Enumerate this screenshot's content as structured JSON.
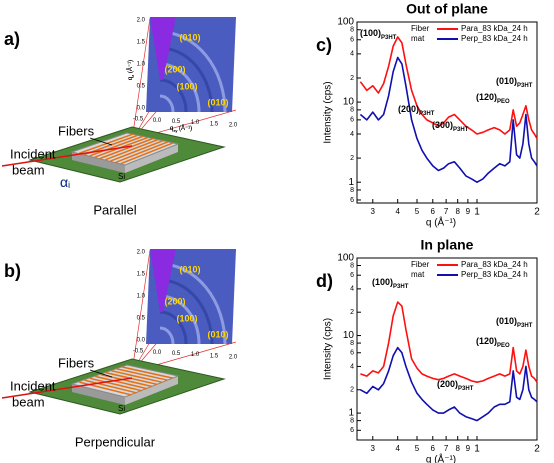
{
  "diagrams": [
    {
      "label": "a)",
      "fibers": "Fibers",
      "beam": [
        "Incident",
        "beam"
      ],
      "alpha": {
        "symbol": "α",
        "sub": "i"
      },
      "substrate": "Si",
      "caption": "Parallel",
      "detector": {
        "reflections": [
          "(010)",
          "(200)",
          "(100)",
          "(010)"
        ],
        "z_ticks": [
          "2.0",
          "1.5",
          "1.0",
          "0.5",
          "0.0"
        ],
        "xy_ticks": [
          "-0.5",
          "0.0",
          "0.5",
          "1.0",
          "1.5",
          "2.0"
        ],
        "z_label": {
          "symbol": "q",
          "sub": "z",
          "unit": " (Å⁻¹)"
        },
        "xy_label": {
          "symbol": "q",
          "sub": "xy",
          "unit": " (Å⁻¹)"
        }
      }
    },
    {
      "label": "b)",
      "fibers": "Fibers",
      "beam": [
        "Incident",
        "beam"
      ],
      "alpha": {
        "symbol": "α",
        "sub": "i"
      },
      "substrate": "Si",
      "caption": "Perpendicular",
      "detector": {
        "reflections": [
          "(010)",
          "(200)",
          "(100)",
          "(010)"
        ],
        "z_ticks": [
          "2.0",
          "1.5",
          "1.0",
          "0.5",
          "0.0"
        ],
        "xy_ticks": [
          "-0.5",
          "0.0",
          "0.5",
          "1.0",
          "1.5",
          "2.0"
        ],
        "z_label": {
          "symbol": "q",
          "sub": "z",
          "unit": " (Å⁻¹)"
        },
        "xy_label": {
          "symbol": "q",
          "sub": "xy",
          "unit": " (Å⁻¹)"
        }
      }
    }
  ],
  "chart_data": [
    {
      "type": "line",
      "panel_label": "c)",
      "title": "Out of plane",
      "x_label": "q (Å⁻¹)",
      "y_label": "Intensity (cps)",
      "log_x": true,
      "log_y": true,
      "xlim": [
        0.25,
        2.0
      ],
      "ylim": [
        0.55,
        100
      ],
      "xticks": [
        {
          "value": 0.3,
          "label": "3"
        },
        {
          "value": 0.4,
          "label": "4"
        },
        {
          "value": 0.5,
          "label": "5"
        },
        {
          "value": 0.6,
          "label": "6"
        },
        {
          "value": 0.7,
          "label": "7"
        },
        {
          "value": 0.8,
          "label": "8"
        },
        {
          "value": 0.9,
          "label": "9"
        },
        1,
        2
      ],
      "yticks": [
        100,
        {
          "value": 80,
          "label": "8"
        },
        {
          "value": 60,
          "label": "6"
        },
        {
          "value": 40,
          "label": "4"
        },
        {
          "value": 20,
          "label": "2"
        },
        10,
        8,
        6,
        4,
        2,
        1,
        {
          "value": 0.8,
          "label": "8"
        },
        {
          "value": 0.6,
          "label": "6"
        }
      ],
      "legend_title": [
        "Fiber",
        "mat"
      ],
      "x": [
        0.26,
        0.28,
        0.3,
        0.32,
        0.34,
        0.36,
        0.38,
        0.4,
        0.42,
        0.44,
        0.47,
        0.5,
        0.53,
        0.56,
        0.6,
        0.64,
        0.68,
        0.72,
        0.77,
        0.82,
        0.88,
        0.94,
        1.0,
        1.07,
        1.14,
        1.22,
        1.3,
        1.38,
        1.46,
        1.52,
        1.58,
        1.64,
        1.7,
        1.76,
        1.82,
        1.88,
        1.94,
        2.0
      ],
      "series": [
        {
          "name": "Para_83 kDa_24 h",
          "color": "#ff1010",
          "values": [
            18,
            14,
            16,
            13,
            17,
            28,
            50,
            65,
            55,
            30,
            14,
            9,
            7,
            6,
            5.5,
            5,
            5.5,
            6.5,
            7,
            6,
            5,
            4.5,
            4,
            4.2,
            4.5,
            4.8,
            4.5,
            4,
            4.5,
            8,
            5,
            5.5,
            7,
            9,
            6,
            4.5,
            4,
            3.5
          ]
        },
        {
          "name": "Perp_83 kDa_24 h",
          "color": "#1010b0",
          "values": [
            7,
            6,
            7.5,
            6,
            7,
            12,
            24,
            36,
            30,
            16,
            6,
            3.5,
            2.5,
            2,
            1.6,
            1.4,
            1.5,
            1.7,
            1.8,
            1.5,
            1.2,
            1.1,
            1.0,
            1.1,
            1.3,
            1.5,
            1.7,
            1.6,
            1.8,
            6,
            2.2,
            2.0,
            3,
            7,
            3,
            2,
            1.8,
            1.6
          ]
        }
      ],
      "annotations": [
        {
          "text": "(100)",
          "sub": "P3HT"
        },
        {
          "text": "(200)",
          "sub": "P3HT"
        },
        {
          "text": "(300)",
          "sub": "P3HT"
        },
        {
          "text": "(120)",
          "sub": "PEO"
        },
        {
          "text": "(010)",
          "sub": "P3HT"
        }
      ]
    },
    {
      "type": "line",
      "panel_label": "d)",
      "title": "In plane",
      "x_label": "q (Å⁻¹)",
      "y_label": "Intensity (cps)",
      "log_x": true,
      "log_y": true,
      "xlim": [
        0.25,
        2.0
      ],
      "ylim": [
        0.45,
        100
      ],
      "xticks": [
        {
          "value": 0.3,
          "label": "3"
        },
        {
          "value": 0.4,
          "label": "4"
        },
        {
          "value": 0.5,
          "label": "5"
        },
        {
          "value": 0.6,
          "label": "6"
        },
        {
          "value": 0.7,
          "label": "7"
        },
        {
          "value": 0.8,
          "label": "8"
        },
        {
          "value": 0.9,
          "label": "9"
        },
        1,
        2
      ],
      "yticks": [
        100,
        {
          "value": 80,
          "label": "8"
        },
        {
          "value": 60,
          "label": "6"
        },
        {
          "value": 40,
          "label": "4"
        },
        {
          "value": 20,
          "label": "2"
        },
        10,
        8,
        6,
        4,
        2,
        1,
        {
          "value": 0.8,
          "label": "8"
        },
        {
          "value": 0.6,
          "label": "6"
        }
      ],
      "legend_title": [
        "Fiber",
        "mat"
      ],
      "x": [
        0.26,
        0.28,
        0.3,
        0.32,
        0.34,
        0.36,
        0.38,
        0.4,
        0.42,
        0.44,
        0.47,
        0.5,
        0.53,
        0.56,
        0.6,
        0.64,
        0.68,
        0.72,
        0.77,
        0.82,
        0.88,
        0.94,
        1.0,
        1.07,
        1.14,
        1.22,
        1.3,
        1.38,
        1.46,
        1.52,
        1.58,
        1.64,
        1.7,
        1.76,
        1.82,
        1.88,
        1.94,
        2.0
      ],
      "series": [
        {
          "name": "Para_83 kDa_24 h",
          "color": "#ff1010",
          "values": [
            3.2,
            3,
            3.5,
            3.3,
            4,
            8,
            18,
            27,
            24,
            12,
            5,
            3.8,
            3.2,
            3,
            2.8,
            2.7,
            2.8,
            3,
            3.2,
            3,
            2.8,
            2.6,
            2.5,
            2.6,
            2.8,
            3,
            3.2,
            3,
            3.2,
            7,
            3.5,
            3.2,
            4,
            6.5,
            4,
            3,
            2.8,
            2.5
          ]
        },
        {
          "name": "Perp_83 kDa_24 h",
          "color": "#1010b0",
          "values": [
            2,
            1.8,
            2.2,
            2,
            2.4,
            3.5,
            5.5,
            7,
            6,
            4,
            2.5,
            1.8,
            1.5,
            1.3,
            1.1,
            1.0,
            1.0,
            1.1,
            1.2,
            1.0,
            0.9,
            0.85,
            0.8,
            0.9,
            1.0,
            1.2,
            1.3,
            1.3,
            1.4,
            3.5,
            1.6,
            1.5,
            2,
            4,
            2,
            1.6,
            1.5,
            1.4
          ]
        }
      ],
      "annotations": [
        {
          "text": "(100)",
          "sub": "P3HT"
        },
        {
          "text": "(200)",
          "sub": "P3HT"
        },
        {
          "text": "(120)",
          "sub": "PEO"
        },
        {
          "text": "(010)",
          "sub": "P3HT"
        }
      ]
    }
  ]
}
